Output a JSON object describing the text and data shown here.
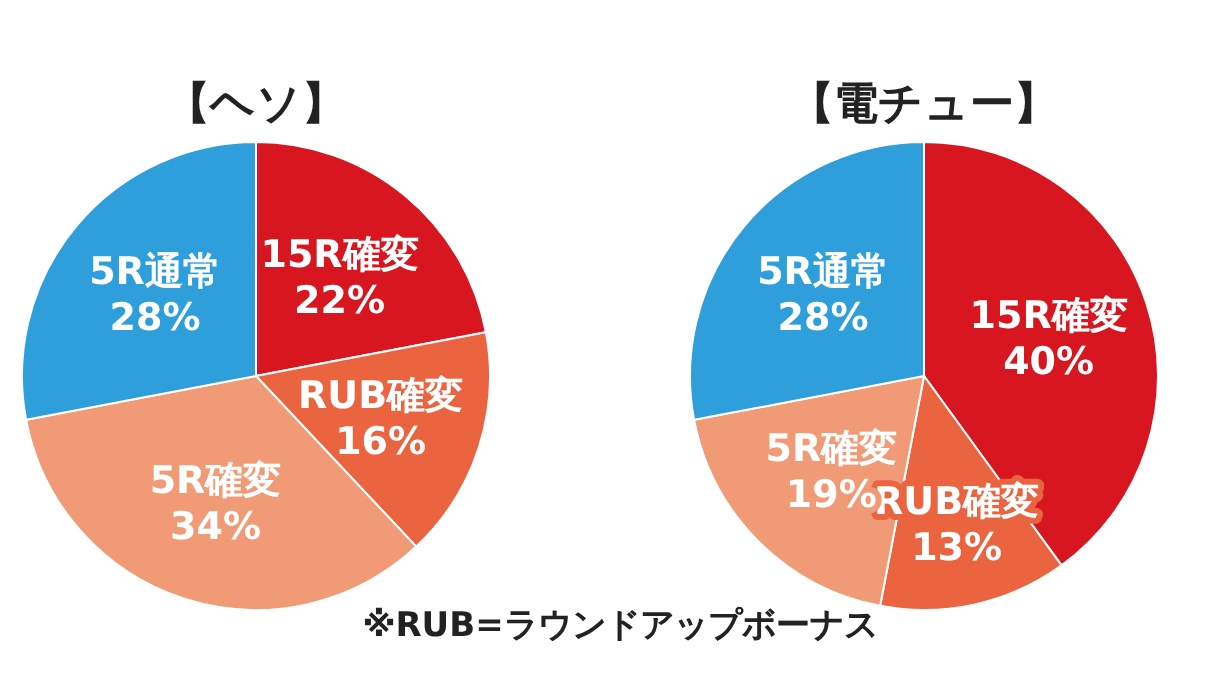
{
  "chart_data": [
    {
      "type": "pie",
      "title": "【ヘソ】",
      "categories": [
        "15R確変",
        "RUB確変",
        "5R確変",
        "5R通常"
      ],
      "values": [
        22,
        16,
        34,
        28
      ],
      "value_labels": [
        "22%",
        "16%",
        "34%",
        "28%"
      ],
      "colors": [
        "#d7161f",
        "#ea6440",
        "#f09b76",
        "#2e9fdb"
      ]
    },
    {
      "type": "pie",
      "title": "【電チュー】",
      "categories": [
        "15R確変",
        "RUB確変",
        "5R確変",
        "5R通常"
      ],
      "values": [
        40,
        13,
        19,
        28
      ],
      "value_labels": [
        "40%",
        "13%",
        "19%",
        "28%"
      ],
      "colors": [
        "#d7161f",
        "#ea6440",
        "#f09b76",
        "#2e9fdb"
      ],
      "annotations": [
        "※RUB=ラウンドアップボーナス"
      ]
    }
  ]
}
